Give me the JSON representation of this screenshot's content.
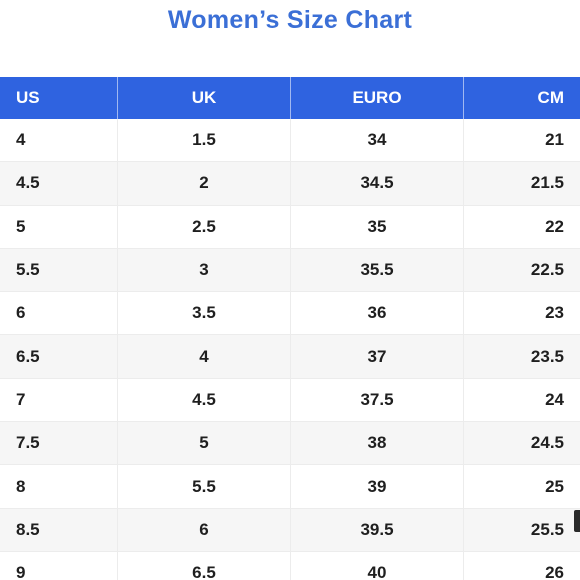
{
  "title": "Women’s Size Chart",
  "columns": [
    "US",
    "UK",
    "EURO",
    "CM"
  ],
  "rows": [
    [
      "4",
      "1.5",
      "34",
      "21"
    ],
    [
      "4.5",
      "2",
      "34.5",
      "21.5"
    ],
    [
      "5",
      "2.5",
      "35",
      "22"
    ],
    [
      "5.5",
      "3",
      "35.5",
      "22.5"
    ],
    [
      "6",
      "3.5",
      "36",
      "23"
    ],
    [
      "6.5",
      "4",
      "37",
      "23.5"
    ],
    [
      "7",
      "4.5",
      "37.5",
      "24"
    ],
    [
      "7.5",
      "5",
      "38",
      "24.5"
    ],
    [
      "8",
      "5.5",
      "39",
      "25"
    ],
    [
      "8.5",
      "6",
      "39.5",
      "25.5"
    ],
    [
      "9",
      "6.5",
      "40",
      "26"
    ]
  ],
  "colors": {
    "title": "#3b6fd6",
    "header_bg": "#2f63e0",
    "header_text": "#ffffff",
    "row_alt_bg": "#f6f6f6"
  }
}
